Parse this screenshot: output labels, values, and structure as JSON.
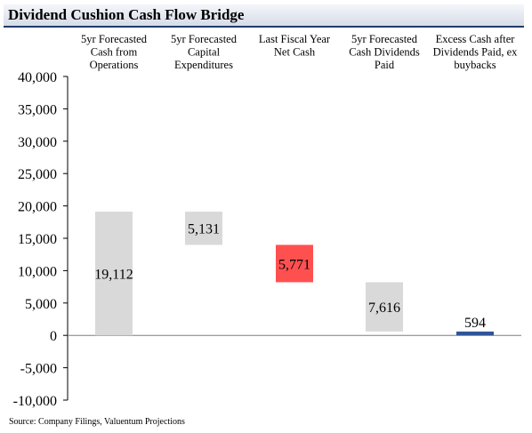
{
  "title": "Dividend Cushion Cash Flow Bridge",
  "source": "Source: Company Filings, Valuentum Projections",
  "chart_data": {
    "type": "bar",
    "subtype": "waterfall",
    "categories": [
      "5yr Forecasted Cash from Operations",
      "5yr Forecasted Capital Expenditures",
      "Last Fiscal Year Net Cash",
      "5yr Forecasted Cash Dividends Paid",
      "Excess Cash after Dividends Paid, ex buybacks"
    ],
    "category_lines": [
      [
        "5yr Forecasted",
        "Cash from",
        "Operations"
      ],
      [
        "5yr Forecasted",
        "Capital",
        "Expenditures"
      ],
      [
        "Last Fiscal Year",
        "Net Cash"
      ],
      [
        "5yr Forecasted",
        "Cash Dividends",
        "Paid"
      ],
      [
        "Excess Cash after",
        "Dividends Paid, ex",
        "buybacks"
      ]
    ],
    "values": [
      19112,
      -5131,
      -5771,
      -7616,
      594
    ],
    "bars": [
      {
        "low": 0,
        "high": 19112,
        "label": "19,112",
        "color": "#d9d9d9"
      },
      {
        "low": 13981,
        "high": 19112,
        "label": "5,131",
        "color": "#d9d9d9"
      },
      {
        "low": 8210,
        "high": 13981,
        "label": "5,771",
        "color": "#ff5050"
      },
      {
        "low": 594,
        "high": 8210,
        "label": "7,616",
        "color": "#d9d9d9"
      },
      {
        "low": 0,
        "high": 594,
        "label": "594",
        "color": "#2f5597"
      }
    ],
    "yticks": [
      40000,
      35000,
      30000,
      25000,
      20000,
      15000,
      10000,
      5000,
      0,
      -5000,
      -10000
    ],
    "ytick_labels": [
      "40,000",
      "35,000",
      "30,000",
      "25,000",
      "20,000",
      "15,000",
      "10,000",
      "5,000",
      "0",
      "-5,000",
      "-10,000"
    ],
    "ylim": [
      -10000,
      40000
    ],
    "grid": false,
    "legend": "none"
  }
}
